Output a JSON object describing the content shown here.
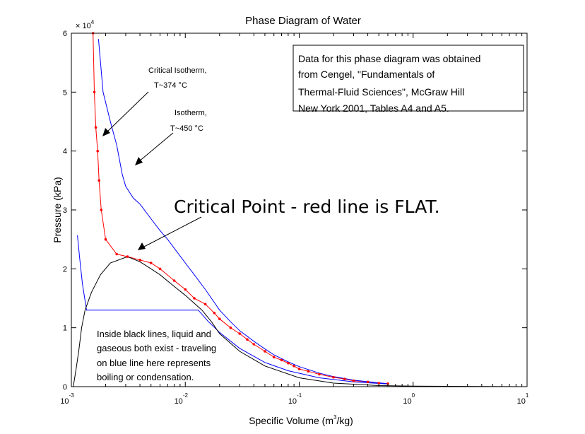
{
  "chart_data": {
    "type": "line",
    "title": "Phase Diagram of Water",
    "xlabel": {
      "base": "Specific Volume (m",
      "sup": "3",
      "rest": "/kg)"
    },
    "ylabel": "Pressure (kPa)",
    "x_scale": "log",
    "xlim": [
      0.001,
      10
    ],
    "ylim": [
      0,
      60000
    ],
    "y_multiplier": {
      "base": "× 10",
      "exp": "4"
    },
    "x_ticks": [
      {
        "value": 0.001,
        "base": "10",
        "exp": "-3"
      },
      {
        "value": 0.01,
        "base": "10",
        "exp": "-2"
      },
      {
        "value": 0.1,
        "base": "10",
        "exp": "-1"
      },
      {
        "value": 1,
        "base": "10",
        "exp": "0"
      },
      {
        "value": 10,
        "base": "10",
        "exp": "1"
      }
    ],
    "y_ticks": [
      {
        "value": 0,
        "label": "0"
      },
      {
        "value": 10000,
        "label": "1"
      },
      {
        "value": 20000,
        "label": "2"
      },
      {
        "value": 30000,
        "label": "3"
      },
      {
        "value": 40000,
        "label": "4"
      },
      {
        "value": 50000,
        "label": "5"
      },
      {
        "value": 60000,
        "label": "6"
      }
    ],
    "series": [
      {
        "color": "#ff0000",
        "markers": true,
        "points": [
          [
            0.00155,
            60000
          ],
          [
            0.00159,
            50000
          ],
          [
            0.00164,
            44000
          ],
          [
            0.0017,
            40000
          ],
          [
            0.00175,
            35000
          ],
          [
            0.00183,
            30000
          ],
          [
            0.002,
            25000
          ],
          [
            0.0025,
            22500
          ],
          [
            0.00311,
            22064
          ],
          [
            0.004,
            21500
          ],
          [
            0.005,
            21000
          ],
          [
            0.006,
            20000
          ],
          [
            0.008,
            18000
          ],
          [
            0.01,
            16500
          ],
          [
            0.012,
            15000
          ],
          [
            0.015,
            14000
          ],
          [
            0.018,
            12500
          ],
          [
            0.02,
            11500
          ],
          [
            0.025,
            10000
          ],
          [
            0.03,
            9000
          ],
          [
            0.035,
            8000
          ],
          [
            0.04,
            7200
          ],
          [
            0.05,
            6000
          ],
          [
            0.06,
            5000
          ],
          [
            0.07,
            4500
          ],
          [
            0.08,
            4000
          ],
          [
            0.09,
            3500
          ],
          [
            0.1,
            3000
          ],
          [
            0.12,
            2600
          ],
          [
            0.15,
            2100
          ],
          [
            0.2,
            1600
          ],
          [
            0.25,
            1300
          ],
          [
            0.3,
            1000
          ],
          [
            0.4,
            800
          ],
          [
            0.5,
            600
          ],
          [
            0.6,
            500
          ]
        ]
      },
      {
        "color": "#0000ff",
        "markers": false,
        "points": [
          [
            0.00173,
            59000
          ],
          [
            0.0019,
            50000
          ],
          [
            0.0022,
            45000
          ],
          [
            0.0025,
            41000
          ],
          [
            0.0028,
            36000
          ],
          [
            0.003,
            34000
          ],
          [
            0.0035,
            32000
          ],
          [
            0.004,
            31000
          ],
          [
            0.005,
            28500
          ],
          [
            0.006,
            26500
          ],
          [
            0.007,
            25000
          ],
          [
            0.008,
            23500
          ],
          [
            0.01,
            21000
          ],
          [
            0.012,
            19000
          ],
          [
            0.015,
            16500
          ],
          [
            0.02,
            13000
          ],
          [
            0.025,
            11000
          ],
          [
            0.03,
            9500
          ],
          [
            0.04,
            7700
          ],
          [
            0.05,
            6400
          ],
          [
            0.06,
            5400
          ],
          [
            0.08,
            4200
          ],
          [
            0.1,
            3400
          ],
          [
            0.15,
            2300
          ],
          [
            0.2,
            1700
          ],
          [
            0.3,
            1100
          ],
          [
            0.5,
            650
          ],
          [
            0.6,
            500
          ]
        ]
      },
      {
        "color": "#0000ff",
        "markers": false,
        "points": [
          [
            0.00113,
            25700
          ],
          [
            0.00118,
            22000
          ],
          [
            0.00125,
            17500
          ],
          [
            0.00136,
            13000
          ],
          [
            0.013,
            13000
          ],
          [
            0.016,
            11000
          ],
          [
            0.02,
            9200
          ],
          [
            0.03,
            6500
          ],
          [
            0.05,
            4100
          ],
          [
            0.08,
            2700
          ],
          [
            0.15,
            1500
          ],
          [
            0.3,
            800
          ],
          [
            0.6,
            450
          ]
        ]
      },
      {
        "color": "#000000",
        "markers": false,
        "points": [
          [
            0.00104,
            0
          ],
          [
            0.0011,
            3000
          ],
          [
            0.00116,
            6000
          ],
          [
            0.00123,
            10000
          ],
          [
            0.00132,
            13000
          ],
          [
            0.0015,
            16000
          ],
          [
            0.0018,
            19000
          ],
          [
            0.0022,
            21000
          ],
          [
            0.00311,
            22064
          ],
          [
            0.004,
            21200
          ],
          [
            0.005,
            20000
          ],
          [
            0.006,
            19000
          ],
          [
            0.008,
            17000
          ],
          [
            0.01,
            15500
          ],
          [
            0.014,
            13000
          ],
          [
            0.017,
            11000
          ],
          [
            0.02,
            9000
          ],
          [
            0.03,
            6000
          ],
          [
            0.05,
            3500
          ],
          [
            0.1,
            1500
          ],
          [
            0.2,
            600
          ],
          [
            0.5,
            180
          ],
          [
            1,
            80
          ],
          [
            10,
            0
          ]
        ]
      }
    ],
    "annotations": [
      {
        "lines": [
          "Critical Isotherm,",
          "T~374 °C"
        ]
      },
      {
        "lines": [
          "Isotherm,",
          "T~450 °C"
        ]
      },
      {
        "lines": [
          "Critical Point - red line is FLAT."
        ]
      },
      {
        "lines": [
          "Data for this phase diagram was obtained",
          "from Cengel, \"Fundamentals of",
          "Thermal-Fluid Sciences\", McGraw Hill",
          "New York 2001, Tables A4 and A5."
        ]
      },
      {
        "lines": [
          "Inside black lines, liquid and",
          "gaseous both exist - traveling",
          "on blue line here represents",
          "boiling or condensation."
        ]
      }
    ]
  }
}
